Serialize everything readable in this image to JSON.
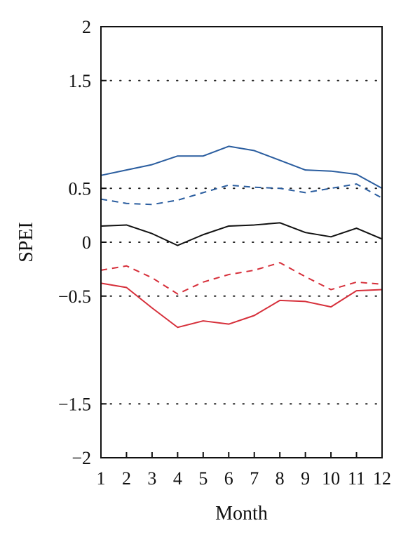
{
  "chart_data": {
    "type": "line",
    "title": "",
    "xlabel": "Month",
    "ylabel": "SPEI",
    "x": [
      1,
      2,
      3,
      4,
      5,
      6,
      7,
      8,
      9,
      10,
      11,
      12
    ],
    "xlim": [
      1,
      12
    ],
    "ylim": [
      -2,
      2
    ],
    "yticks": [
      2,
      1.5,
      0.5,
      0,
      -0.5,
      -1.5,
      -2
    ],
    "ytick_labels": [
      "2",
      "1.5",
      "0.5",
      "0",
      "−0.5",
      "−1.5",
      "−2"
    ],
    "xtick_labels": [
      "1",
      "2",
      "3",
      "4",
      "5",
      "6",
      "7",
      "8",
      "9",
      "10",
      "11",
      "12"
    ],
    "gridlines_y": [
      1.5,
      0.5,
      0,
      -0.5,
      -1.5
    ],
    "grid": "dotted horizontal",
    "legend": "none",
    "series": [
      {
        "color": "#2a5d9f",
        "style": "solid",
        "values": [
          0.62,
          0.67,
          0.72,
          0.8,
          0.8,
          0.89,
          0.85,
          0.76,
          0.67,
          0.66,
          0.63,
          0.5
        ]
      },
      {
        "color": "#2a5d9f",
        "style": "dashed",
        "values": [
          0.4,
          0.36,
          0.35,
          0.39,
          0.46,
          0.53,
          0.51,
          0.5,
          0.46,
          0.5,
          0.54,
          0.41
        ]
      },
      {
        "color": "#111111",
        "style": "solid",
        "values": [
          0.15,
          0.16,
          0.08,
          -0.03,
          0.07,
          0.15,
          0.16,
          0.18,
          0.09,
          0.05,
          0.13,
          0.03
        ]
      },
      {
        "color": "#d62f3a",
        "style": "dashed",
        "values": [
          -0.26,
          -0.22,
          -0.33,
          -0.48,
          -0.37,
          -0.3,
          -0.26,
          -0.19,
          -0.32,
          -0.44,
          -0.37,
          -0.39
        ]
      },
      {
        "color": "#d62f3a",
        "style": "solid",
        "values": [
          -0.38,
          -0.42,
          -0.61,
          -0.79,
          -0.73,
          -0.76,
          -0.68,
          -0.54,
          -0.55,
          -0.6,
          -0.45,
          -0.44
        ]
      }
    ]
  }
}
